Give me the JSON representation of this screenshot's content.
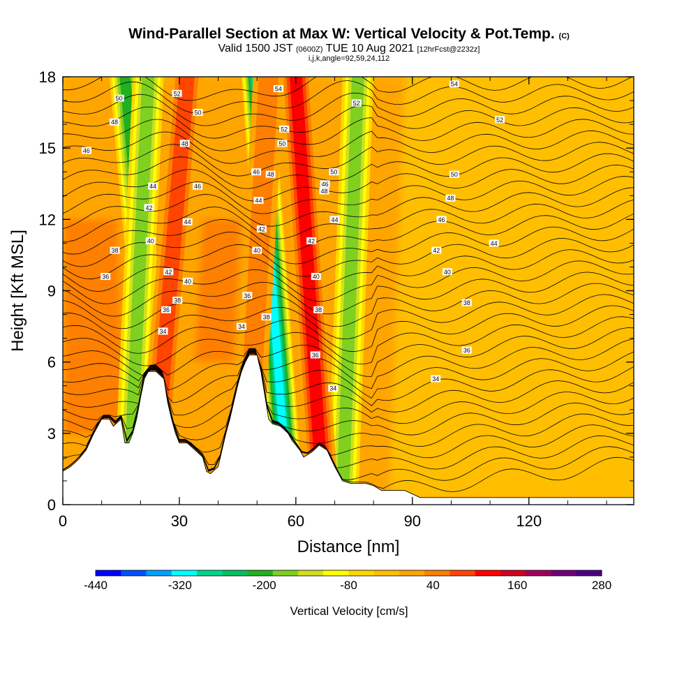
{
  "title": {
    "main": "Wind-Parallel Section at Max W: Vertical Velocity & Pot.Temp.",
    "mark": "(C)",
    "valid_a": "Valid 1500 JST",
    "valid_z": "(0600Z)",
    "valid_b": "TUE 10 Aug 2021",
    "fcst": "[12hrFcst@2232z]",
    "params": "i,j,k,angle=92,59,24,112"
  },
  "chart_data": {
    "type": "heatmap",
    "xlabel": "Distance [nm]",
    "ylabel": "Height [Kft MSL]",
    "xlim": [
      0,
      147
    ],
    "ylim": [
      0,
      18
    ],
    "xticks": [
      "0",
      "30",
      "60",
      "90",
      "120"
    ],
    "yticks": [
      "0",
      "3",
      "6",
      "9",
      "12",
      "15",
      "18"
    ],
    "colorbar": {
      "label": "Vertical Velocity [cm/s]",
      "ticks": [
        "-440",
        "-320",
        "-200",
        "-80",
        "40",
        "160",
        "280"
      ],
      "min": -440,
      "max": 280,
      "step": 40,
      "colors": [
        "#0000ff",
        "#0050ff",
        "#00a0ff",
        "#00ffff",
        "#00d68c",
        "#00c060",
        "#20b020",
        "#80d020",
        "#d0e020",
        "#ffff00",
        "#ffd700",
        "#ffbf00",
        "#ffa500",
        "#ff7f00",
        "#ff4500",
        "#ff0000",
        "#d2001e",
        "#a0005a",
        "#70007a",
        "#4b0082"
      ]
    },
    "updraft_bands": [
      {
        "x_top": 32,
        "x_bottom": 23,
        "w": 140
      },
      {
        "x_top": 60,
        "x_bottom": 67,
        "w": 200
      },
      {
        "x_top": 53,
        "x_bottom": 47,
        "w": 120
      }
    ],
    "downdraft_bands": [
      {
        "x_top": 16,
        "x_bottom": 26,
        "w": -200
      },
      {
        "x_top": 50,
        "x_bottom": 58,
        "w": -320
      },
      {
        "x_top": 76,
        "x_bottom": 72,
        "w": -160
      },
      {
        "x_top": 22,
        "x_bottom": 17,
        "w": -160
      }
    ],
    "terrain": [
      [
        0,
        1.4
      ],
      [
        2,
        1.6
      ],
      [
        4,
        1.9
      ],
      [
        6,
        2.3
      ],
      [
        8,
        3.0
      ],
      [
        10,
        3.6
      ],
      [
        12,
        3.6
      ],
      [
        13,
        3.3
      ],
      [
        15,
        3.6
      ],
      [
        16,
        2.6
      ],
      [
        17,
        2.6
      ],
      [
        18,
        3.0
      ],
      [
        19,
        3.6
      ],
      [
        20,
        4.5
      ],
      [
        21,
        5.3
      ],
      [
        22,
        5.6
      ],
      [
        24,
        5.6
      ],
      [
        26,
        5.3
      ],
      [
        27,
        4.3
      ],
      [
        28,
        3.6
      ],
      [
        29,
        3.0
      ],
      [
        30,
        2.6
      ],
      [
        32,
        2.6
      ],
      [
        34,
        2.3
      ],
      [
        36,
        2.0
      ],
      [
        37,
        1.4
      ],
      [
        38,
        1.3
      ],
      [
        40,
        1.6
      ],
      [
        41,
        2.3
      ],
      [
        42,
        3.0
      ],
      [
        43,
        3.6
      ],
      [
        44,
        4.3
      ],
      [
        45,
        5.0
      ],
      [
        46,
        5.6
      ],
      [
        47,
        6.0
      ],
      [
        48,
        6.3
      ],
      [
        50,
        6.3
      ],
      [
        51,
        5.6
      ],
      [
        52,
        4.6
      ],
      [
        53,
        3.6
      ],
      [
        54,
        3.4
      ],
      [
        56,
        3.3
      ],
      [
        58,
        3.0
      ],
      [
        59,
        2.7
      ],
      [
        61,
        2.3
      ],
      [
        62,
        2.0
      ],
      [
        64,
        2.2
      ],
      [
        66,
        2.5
      ],
      [
        68,
        2.3
      ],
      [
        70,
        1.6
      ],
      [
        72,
        1.0
      ],
      [
        74,
        0.9
      ],
      [
        78,
        0.9
      ],
      [
        80,
        0.8
      ],
      [
        82,
        0.6
      ],
      [
        86,
        0.6
      ],
      [
        88,
        0.6
      ],
      [
        92,
        0.3
      ],
      [
        96,
        0.3
      ],
      [
        147,
        0.3
      ]
    ],
    "isentropes": {
      "labels": [
        {
          "x": 14.5,
          "y": 17.1,
          "t": "50"
        },
        {
          "x": 13.3,
          "y": 16.1,
          "t": "48"
        },
        {
          "x": 6.1,
          "y": 14.9,
          "t": "46"
        },
        {
          "x": 23.2,
          "y": 13.4,
          "t": "44"
        },
        {
          "x": 22.2,
          "y": 12.5,
          "t": "42"
        },
        {
          "x": 22.6,
          "y": 11.1,
          "t": "40"
        },
        {
          "x": 13.4,
          "y": 10.7,
          "t": "38"
        },
        {
          "x": 11.0,
          "y": 9.6,
          "t": "36"
        },
        {
          "x": 29.4,
          "y": 17.3,
          "t": "52"
        },
        {
          "x": 34.8,
          "y": 16.5,
          "t": "50"
        },
        {
          "x": 31.4,
          "y": 15.2,
          "t": "48"
        },
        {
          "x": 34.7,
          "y": 13.4,
          "t": "46"
        },
        {
          "x": 32.1,
          "y": 11.9,
          "t": "44"
        },
        {
          "x": 27.2,
          "y": 9.8,
          "t": "42"
        },
        {
          "x": 32.2,
          "y": 9.4,
          "t": "40"
        },
        {
          "x": 29.5,
          "y": 8.6,
          "t": "38"
        },
        {
          "x": 26.6,
          "y": 8.2,
          "t": "36"
        },
        {
          "x": 25.8,
          "y": 7.3,
          "t": "34"
        },
        {
          "x": 55.5,
          "y": 17.5,
          "t": "54"
        },
        {
          "x": 57.0,
          "y": 15.8,
          "t": "52"
        },
        {
          "x": 56.5,
          "y": 15.2,
          "t": "50"
        },
        {
          "x": 49.8,
          "y": 14.0,
          "t": "46"
        },
        {
          "x": 53.5,
          "y": 13.9,
          "t": "48"
        },
        {
          "x": 50.4,
          "y": 12.8,
          "t": "44"
        },
        {
          "x": 51.2,
          "y": 11.6,
          "t": "42"
        },
        {
          "x": 50.0,
          "y": 10.7,
          "t": "40"
        },
        {
          "x": 47.5,
          "y": 8.8,
          "t": "36"
        },
        {
          "x": 52.4,
          "y": 7.9,
          "t": "38"
        },
        {
          "x": 46.0,
          "y": 7.5,
          "t": "34"
        },
        {
          "x": 75.6,
          "y": 16.9,
          "t": "52"
        },
        {
          "x": 67.5,
          "y": 13.5,
          "t": "46"
        },
        {
          "x": 67.3,
          "y": 13.2,
          "t": "48"
        },
        {
          "x": 69.8,
          "y": 14.0,
          "t": "50"
        },
        {
          "x": 70.0,
          "y": 12.0,
          "t": "44"
        },
        {
          "x": 64.0,
          "y": 11.1,
          "t": "42"
        },
        {
          "x": 65.2,
          "y": 9.6,
          "t": "40"
        },
        {
          "x": 65.8,
          "y": 8.2,
          "t": "38"
        },
        {
          "x": 65.0,
          "y": 6.3,
          "t": "36"
        },
        {
          "x": 69.6,
          "y": 4.9,
          "t": "34"
        },
        {
          "x": 100.8,
          "y": 17.7,
          "t": "54"
        },
        {
          "x": 112.5,
          "y": 16.2,
          "t": "52"
        },
        {
          "x": 100.8,
          "y": 13.9,
          "t": "50"
        },
        {
          "x": 99.8,
          "y": 12.9,
          "t": "48"
        },
        {
          "x": 97.5,
          "y": 12.0,
          "t": "46"
        },
        {
          "x": 111.0,
          "y": 11.0,
          "t": "44"
        },
        {
          "x": 96.2,
          "y": 10.7,
          "t": "42"
        },
        {
          "x": 99.0,
          "y": 9.8,
          "t": "40"
        },
        {
          "x": 104.0,
          "y": 8.5,
          "t": "38"
        },
        {
          "x": 104.0,
          "y": 6.5,
          "t": "36"
        },
        {
          "x": 96.0,
          "y": 5.3,
          "t": "34"
        }
      ]
    }
  }
}
